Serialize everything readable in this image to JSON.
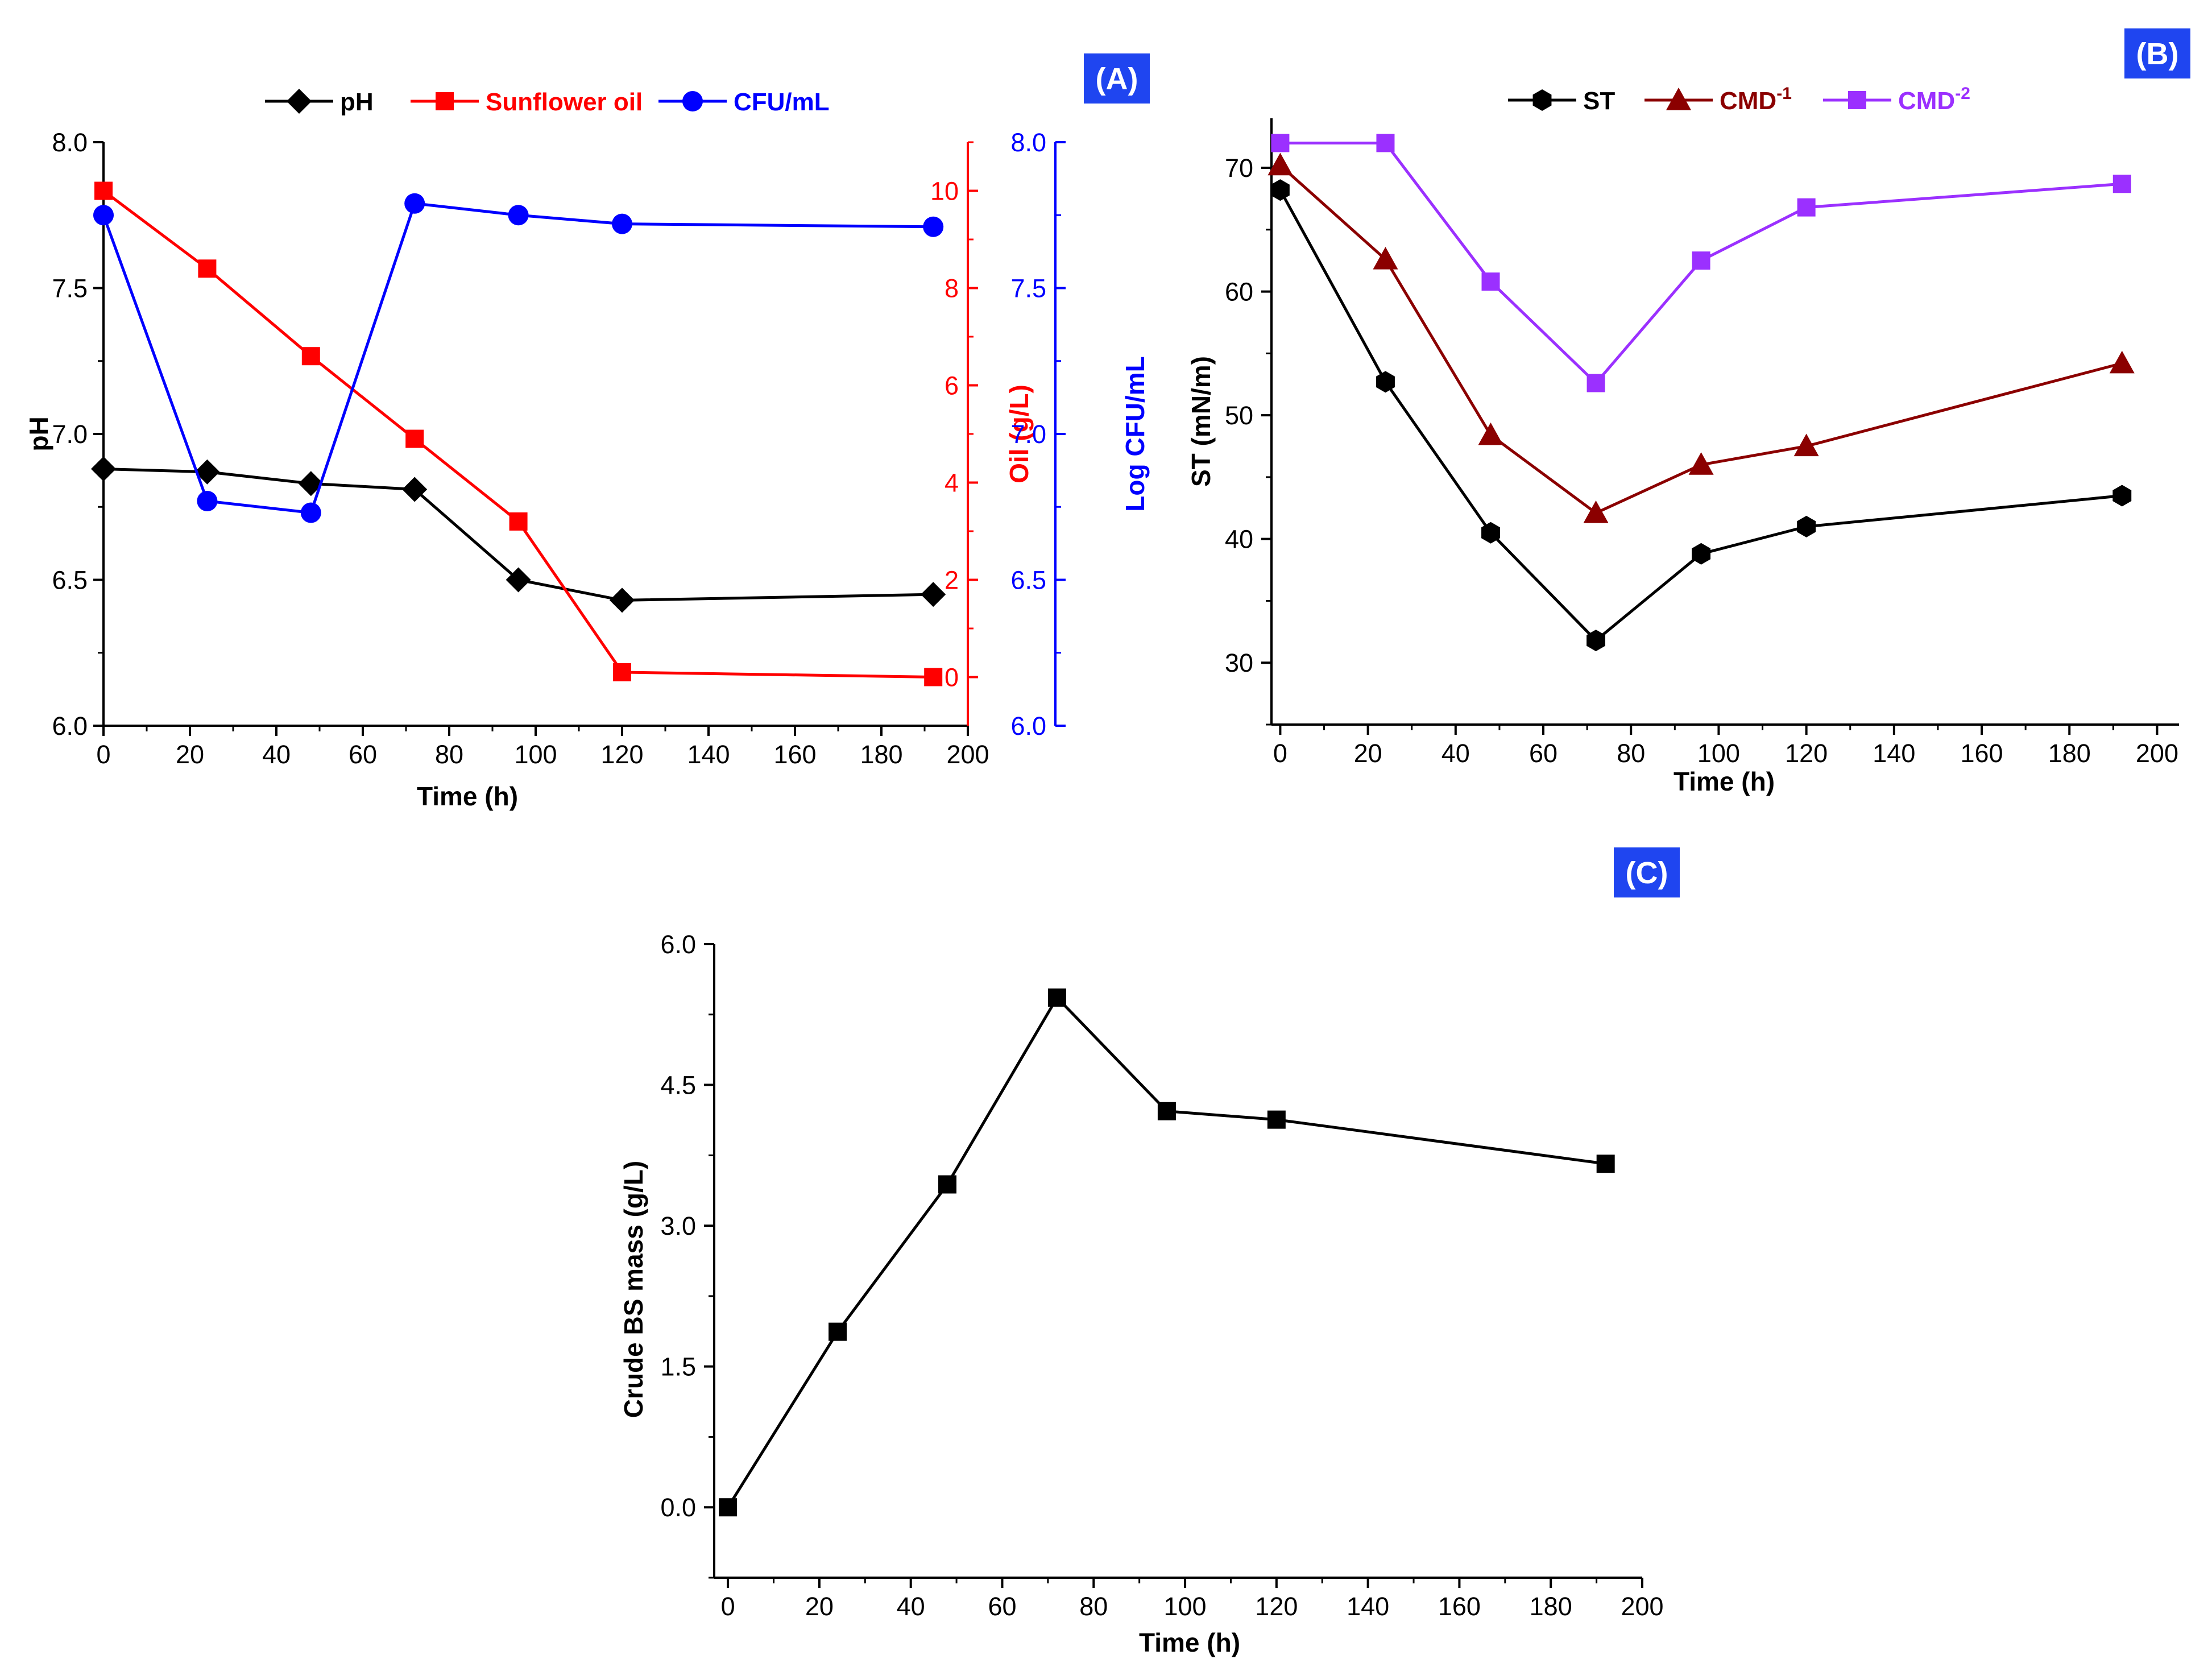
{
  "chart_data": [
    {
      "id": "A",
      "type": "line",
      "badge": "(A)",
      "x": [
        0,
        24,
        48,
        72,
        96,
        120,
        192
      ],
      "xlabel": "Time (h)",
      "xlim": [
        0,
        200
      ],
      "xticks": [
        0,
        20,
        40,
        60,
        80,
        100,
        120,
        140,
        160,
        180,
        200
      ],
      "axes": [
        {
          "key": "left",
          "label": "pH",
          "ylim": [
            6.0,
            8.0
          ],
          "ticks": [
            "6.0",
            "6.5",
            "7.0",
            "7.5",
            "8.0"
          ],
          "color": "#000000"
        },
        {
          "key": "oil",
          "label": "Oil (g/L)",
          "ylim": [
            -1,
            11
          ],
          "ticks": [
            "0",
            "2",
            "4",
            "6",
            "8",
            "10"
          ],
          "color": "#ff0000"
        },
        {
          "key": "cfu",
          "label": "Log CFU/mL",
          "ylim": [
            6.0,
            8.0
          ],
          "ticks": [
            "6.0",
            "6.5",
            "7.0",
            "7.5",
            "8.0"
          ],
          "color": "#0000ff"
        }
      ],
      "series": [
        {
          "name": "pH",
          "axis": "left",
          "marker": "diamond",
          "color": "#000000",
          "x": [
            0,
            24,
            48,
            72,
            96,
            120,
            192
          ],
          "values": [
            6.88,
            6.87,
            6.83,
            6.81,
            6.5,
            6.43,
            6.45
          ]
        },
        {
          "name": "Sunflower oil",
          "axis": "oil",
          "marker": "square",
          "color": "#ff0000",
          "x": [
            0,
            24,
            48,
            72,
            96,
            120,
            192
          ],
          "values": [
            10.0,
            8.4,
            6.6,
            4.9,
            3.2,
            0.1,
            0.0
          ]
        },
        {
          "name": "CFU/mL",
          "axis": "cfu",
          "marker": "circle",
          "color": "#0000ff",
          "x": [
            0,
            24,
            48,
            72,
            96,
            120,
            192
          ],
          "values": [
            7.75,
            6.77,
            6.73,
            7.79,
            7.75,
            7.72,
            7.71
          ]
        }
      ]
    },
    {
      "id": "B",
      "type": "line",
      "badge": "(B)",
      "xlabel": "Time (h)",
      "ylabel": "ST (mN/m)",
      "xlim": [
        -2,
        205
      ],
      "ylim": [
        25,
        74
      ],
      "xticks": [
        0,
        20,
        40,
        60,
        80,
        100,
        120,
        140,
        160,
        180,
        200
      ],
      "yticks": [
        30,
        40,
        50,
        60,
        70
      ],
      "series": [
        {
          "name": "ST",
          "sup": "",
          "marker": "hexagon",
          "color": "#000000",
          "x": [
            0,
            24,
            48,
            72,
            96,
            120,
            192
          ],
          "values": [
            68.2,
            52.7,
            40.5,
            31.8,
            38.8,
            41.0,
            43.5
          ]
        },
        {
          "name": "CMD",
          "sup": "-1",
          "marker": "triangle",
          "color": "#8b0000",
          "x": [
            0,
            24,
            48,
            72,
            96,
            120,
            192
          ],
          "values": [
            70.2,
            62.6,
            48.4,
            42.1,
            46.0,
            47.5,
            54.2
          ]
        },
        {
          "name": "CMD",
          "sup": "-2",
          "marker": "square",
          "color": "#9b30ff",
          "x": [
            0,
            24,
            48,
            72,
            96,
            120,
            192
          ],
          "values": [
            72.0,
            72.0,
            60.8,
            52.6,
            62.5,
            66.8,
            68.7
          ]
        }
      ]
    },
    {
      "id": "C",
      "type": "line",
      "badge": "(C)",
      "xlabel": "Time (h)",
      "ylabel": "Crude BS mass (g/L)",
      "xlim": [
        -3,
        200
      ],
      "ylim": [
        -0.75,
        6.0
      ],
      "xticks": [
        0,
        20,
        40,
        60,
        80,
        100,
        120,
        140,
        160,
        180,
        200
      ],
      "yticks": [
        0.0,
        1.5,
        3.0,
        4.5,
        6.0
      ],
      "ytick_labels": [
        "0.0",
        "1.5",
        "3.0",
        "4.5",
        "6.0"
      ],
      "series": [
        {
          "name": "Crude BS mass",
          "marker": "square",
          "color": "#000000",
          "x": [
            0,
            24,
            48,
            72,
            96,
            120,
            192
          ],
          "values": [
            0.0,
            1.87,
            3.44,
            5.43,
            4.22,
            4.13,
            3.66
          ]
        }
      ]
    }
  ],
  "colors": {
    "badge": "#1f45f0"
  }
}
